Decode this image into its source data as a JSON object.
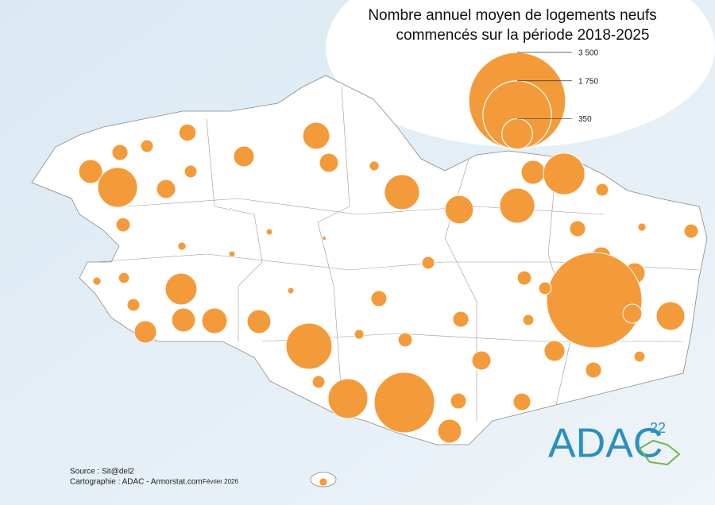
{
  "title": {
    "lines": [
      "Nombre annuel moyen de logements neufs",
      "commencés sur la période 2018-2025"
    ]
  },
  "legend": {
    "items": [
      {
        "value": 3500,
        "label": "3 500"
      },
      {
        "value": 1750,
        "label": "1 750"
      },
      {
        "value": 350,
        "label": "350"
      }
    ]
  },
  "circles": {
    "color": "#f39b3a",
    "values": [
      110,
      95,
      60,
      210,
      590,
      135,
      60,
      160,
      270,
      135,
      35,
      460,
      300,
      460,
      210,
      640,
      60,
      75,
      25,
      2,
      15,
      6,
      15,
      60,
      95,
      25,
      75,
      25,
      45,
      375,
      15,
      95,
      75,
      135,
      160,
      3390,
      60,
      305,
      135,
      60,
      210,
      240,
      210,
      185,
      95,
      45,
      790,
      35,
      75,
      160,
      135,
      95,
      45,
      60,
      590,
      1360,
      95,
      115,
      210,
      25
    ]
  },
  "footer": {
    "source": "Source : Sit@del2",
    "credit": "Cartographie : ADAC - Armorstat.com",
    "date": "Février 2026"
  },
  "logo": {
    "text": "ADAC",
    "number": "22"
  }
}
